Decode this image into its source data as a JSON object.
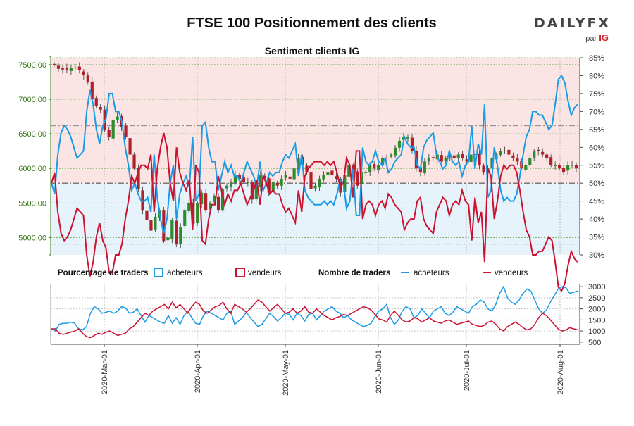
{
  "header": {
    "title": "FTSE 100 Positionnement des clients",
    "logo_text": "DAILYFX",
    "logo_par": "par",
    "logo_ig": "IG"
  },
  "colors": {
    "buyers": "#1a9be6",
    "sellers": "#cc1230",
    "candle_up": "#2e8b2e",
    "candle_down": "#b0202a",
    "price_axis": "#3a7a1a",
    "buyer_zone": "#e6f3fb",
    "seller_zone": "#fbe4e4"
  },
  "chart_data": [
    {
      "type": "candlestick-line",
      "title": "Sentiment clients IG",
      "left_axis": {
        "ticks": [
          "5000.00",
          "5500.00",
          "6000.00",
          "6500.00",
          "7000.00",
          "7500.00"
        ],
        "ylim": [
          4750,
          7600
        ]
      },
      "right_axis": {
        "ticks": [
          "30%",
          "35%",
          "40%",
          "45%",
          "50%",
          "55%",
          "60%",
          "65%",
          "70%",
          "75%",
          "80%",
          "85%"
        ],
        "ylim": [
          30,
          85
        ]
      },
      "reference_lines": [
        33,
        50,
        66
      ],
      "grid": true,
      "price_close": [
        7490,
        7440,
        7430,
        7420,
        7450,
        7460,
        7420,
        7350,
        7250,
        7000,
        6900,
        6850,
        6550,
        6450,
        6700,
        6750,
        6600,
        6450,
        6200,
        6000,
        5700,
        5400,
        5250,
        5100,
        5300,
        5400,
        4950,
        5000,
        5250,
        4900,
        5150,
        5400,
        5500,
        5200,
        5500,
        5650,
        5400,
        5500,
        5600,
        5400,
        5700,
        5750,
        5800,
        5900,
        5850,
        5800,
        5800,
        5550,
        5750,
        5900,
        5850,
        5650,
        5800,
        5750,
        5850,
        5900,
        5850,
        6000,
        6150,
        6050,
        5950,
        5700,
        5750,
        5850,
        5900,
        5950,
        5900,
        5850,
        5650,
        5900,
        6050,
        5950,
        5750,
        5950,
        5950,
        6050,
        6000,
        6050,
        6150,
        6150,
        6200,
        6300,
        6400,
        6450,
        6450,
        6250,
        6000,
        5950,
        6100,
        6150,
        6150,
        6200,
        6100,
        6150,
        6200,
        6150,
        6200,
        6150,
        6100,
        6200,
        6200,
        6050,
        5950,
        6000,
        6150,
        6200,
        6250,
        6250,
        6200,
        6150,
        6100,
        6000,
        6050,
        6150,
        6250,
        6250,
        6200,
        6150,
        6050,
        6050,
        6000,
        5950,
        6050,
        6050,
        6000
      ],
      "pct_buyers": [
        50,
        47,
        58,
        64,
        66,
        65,
        63,
        60,
        57,
        58,
        59,
        70,
        76,
        72,
        65,
        61,
        66,
        68,
        75,
        75,
        70,
        70,
        67,
        60,
        55,
        48,
        50,
        47,
        45,
        45,
        46,
        42,
        58,
        46,
        40,
        36,
        40,
        50,
        55,
        40,
        47,
        50,
        52,
        49,
        63,
        45,
        47,
        66,
        67,
        60,
        56,
        56,
        48,
        52,
        56,
        53,
        55,
        52,
        52,
        50,
        53,
        56,
        54,
        52,
        49,
        56,
        48,
        50,
        53,
        52,
        53,
        53,
        56,
        58,
        57,
        59,
        61,
        52,
        58,
        48,
        46,
        45,
        44,
        44,
        44,
        45,
        44,
        45,
        44,
        47,
        51,
        50,
        43,
        45,
        54,
        41,
        41,
        60,
        56,
        55,
        56,
        59,
        56,
        55,
        57,
        53,
        54,
        56,
        57,
        58,
        63,
        61,
        60,
        60,
        55,
        54,
        60,
        62,
        63,
        64,
        58,
        56,
        54,
        55,
        59,
        56,
        55,
        56,
        52,
        55,
        56,
        66,
        54,
        61,
        58,
        72,
        46,
        48,
        60,
        55,
        48,
        45,
        46,
        45,
        45,
        47,
        52,
        58,
        63,
        65,
        70,
        70,
        69,
        69,
        67,
        65,
        66,
        72,
        79,
        80,
        78,
        73,
        69,
        71,
        72
      ],
      "pct_sellers": [
        50,
        53,
        42,
        36,
        34,
        35,
        37,
        40,
        43,
        42,
        41,
        30,
        24,
        28,
        35,
        39,
        34,
        32,
        25,
        25,
        30,
        30,
        33,
        40,
        45,
        52,
        50,
        53,
        55,
        55,
        54,
        58,
        42,
        54,
        60,
        64,
        60,
        50,
        45,
        60,
        53,
        50,
        48,
        51,
        37,
        55,
        53,
        34,
        33,
        40,
        44,
        44,
        52,
        48,
        44,
        47,
        45,
        48,
        48,
        50,
        47,
        44,
        46,
        48,
        51,
        44,
        52,
        50,
        47,
        48,
        47,
        47,
        44,
        42,
        43,
        41,
        39,
        48,
        42,
        52,
        54,
        55,
        56,
        56,
        56,
        55,
        56,
        55,
        56,
        53,
        49,
        50,
        57,
        55,
        46,
        59,
        59,
        40,
        44,
        45,
        44,
        41,
        44,
        45,
        43,
        47,
        46,
        44,
        43,
        42,
        37,
        39,
        40,
        40,
        45,
        46,
        40,
        38,
        37,
        36,
        42,
        44,
        46,
        45,
        41,
        44,
        45,
        44,
        48,
        45,
        44,
        34,
        46,
        39,
        42,
        28,
        54,
        52,
        40,
        45,
        52,
        55,
        54,
        55,
        55,
        53,
        48,
        42,
        37,
        35,
        30,
        30,
        31,
        31,
        33,
        35,
        34,
        28,
        21,
        20,
        22,
        27,
        31,
        29,
        28
      ]
    },
    {
      "type": "line",
      "legend_pct_title": "Pourcentage de traders",
      "legend_count_title": "Nombre de traders",
      "legend_buyers": "acheteurs",
      "legend_sellers": "vendeurs",
      "right_axis": {
        "ticks": [
          "500",
          "1000",
          "1500",
          "2000",
          "2500",
          "3000"
        ],
        "ylim": [
          400,
          3100
        ]
      },
      "x_ticks": [
        "2020-Mar-01",
        "2020-Apr-01",
        "2020-May-01",
        "2020-Jun-01",
        "2020-Jul-01",
        "2020-Aug-01"
      ],
      "series": [
        {
          "name": "acheteurs",
          "values": [
            1100,
            1000,
            1300,
            1350,
            1350,
            1400,
            1350,
            1100,
            1050,
            1200,
            1800,
            2100,
            2000,
            1800,
            1850,
            1900,
            1800,
            1900,
            2100,
            2050,
            1800,
            1850,
            2000,
            1700,
            1400,
            1700,
            1600,
            1500,
            1400,
            1350,
            1700,
            1350,
            1600,
            1300,
            1700,
            1900,
            1600,
            1350,
            1300,
            1700,
            1900,
            1800,
            1700,
            1600,
            1500,
            1800,
            1900,
            1300,
            1450,
            1600,
            1850,
            1600,
            1400,
            1200,
            1300,
            1550,
            1800,
            1650,
            1450,
            1600,
            1800,
            1750,
            1500,
            1800,
            1700,
            1450,
            1750,
            1800,
            1500,
            1700,
            1900,
            2000,
            2100,
            1900,
            1800,
            1600,
            1700,
            1500,
            1400,
            1300,
            1200,
            1250,
            1350,
            1650,
            1900,
            2000,
            2200,
            1600,
            1300,
            1500,
            1900,
            2100,
            2000,
            1600,
            1700,
            2000,
            1800,
            1600,
            1900,
            2000,
            2100,
            1800,
            1700,
            1850,
            2100,
            2000,
            1900,
            1800,
            2100,
            2200,
            2400,
            2300,
            2000,
            1900,
            2200,
            2700,
            3000,
            2500,
            2300,
            2200,
            2400,
            2700,
            2900,
            2800,
            2400,
            2000,
            1800,
            1950,
            2300,
            2600,
            2900,
            3000,
            2950,
            2700,
            2750,
            2800
          ]
        },
        {
          "name": "vendeurs",
          "values": [
            1100,
            1100,
            900,
            850,
            900,
            950,
            1000,
            1100,
            900,
            750,
            700,
            800,
            900,
            850,
            950,
            1000,
            900,
            800,
            850,
            900,
            1100,
            1200,
            1400,
            1600,
            1800,
            1700,
            1900,
            2000,
            2100,
            2200,
            2000,
            2300,
            2050,
            2200,
            2000,
            1800,
            2100,
            2300,
            2200,
            1900,
            1800,
            1950,
            2100,
            2150,
            2300,
            2000,
            1800,
            2200,
            2100,
            2000,
            1850,
            2000,
            2200,
            2400,
            2300,
            2100,
            1900,
            2050,
            2200,
            2000,
            1800,
            1850,
            2000,
            1800,
            1900,
            2100,
            1850,
            1800,
            2000,
            1850,
            1700,
            1600,
            1500,
            1600,
            1650,
            1750,
            1700,
            1800,
            1900,
            2000,
            2100,
            2050,
            1950,
            1750,
            1550,
            1500,
            1400,
            1700,
            1900,
            1700,
            1500,
            1400,
            1450,
            1600,
            1550,
            1400,
            1500,
            1600,
            1450,
            1400,
            1350,
            1450,
            1500,
            1400,
            1300,
            1350,
            1400,
            1450,
            1300,
            1250,
            1200,
            1250,
            1400,
            1450,
            1300,
            1100,
            1000,
            1200,
            1300,
            1400,
            1300,
            1150,
            1050,
            1100,
            1300,
            1600,
            1800,
            1700,
            1500,
            1300,
            1100,
            1000,
            1050,
            1150,
            1100,
            1050
          ]
        }
      ]
    }
  ]
}
